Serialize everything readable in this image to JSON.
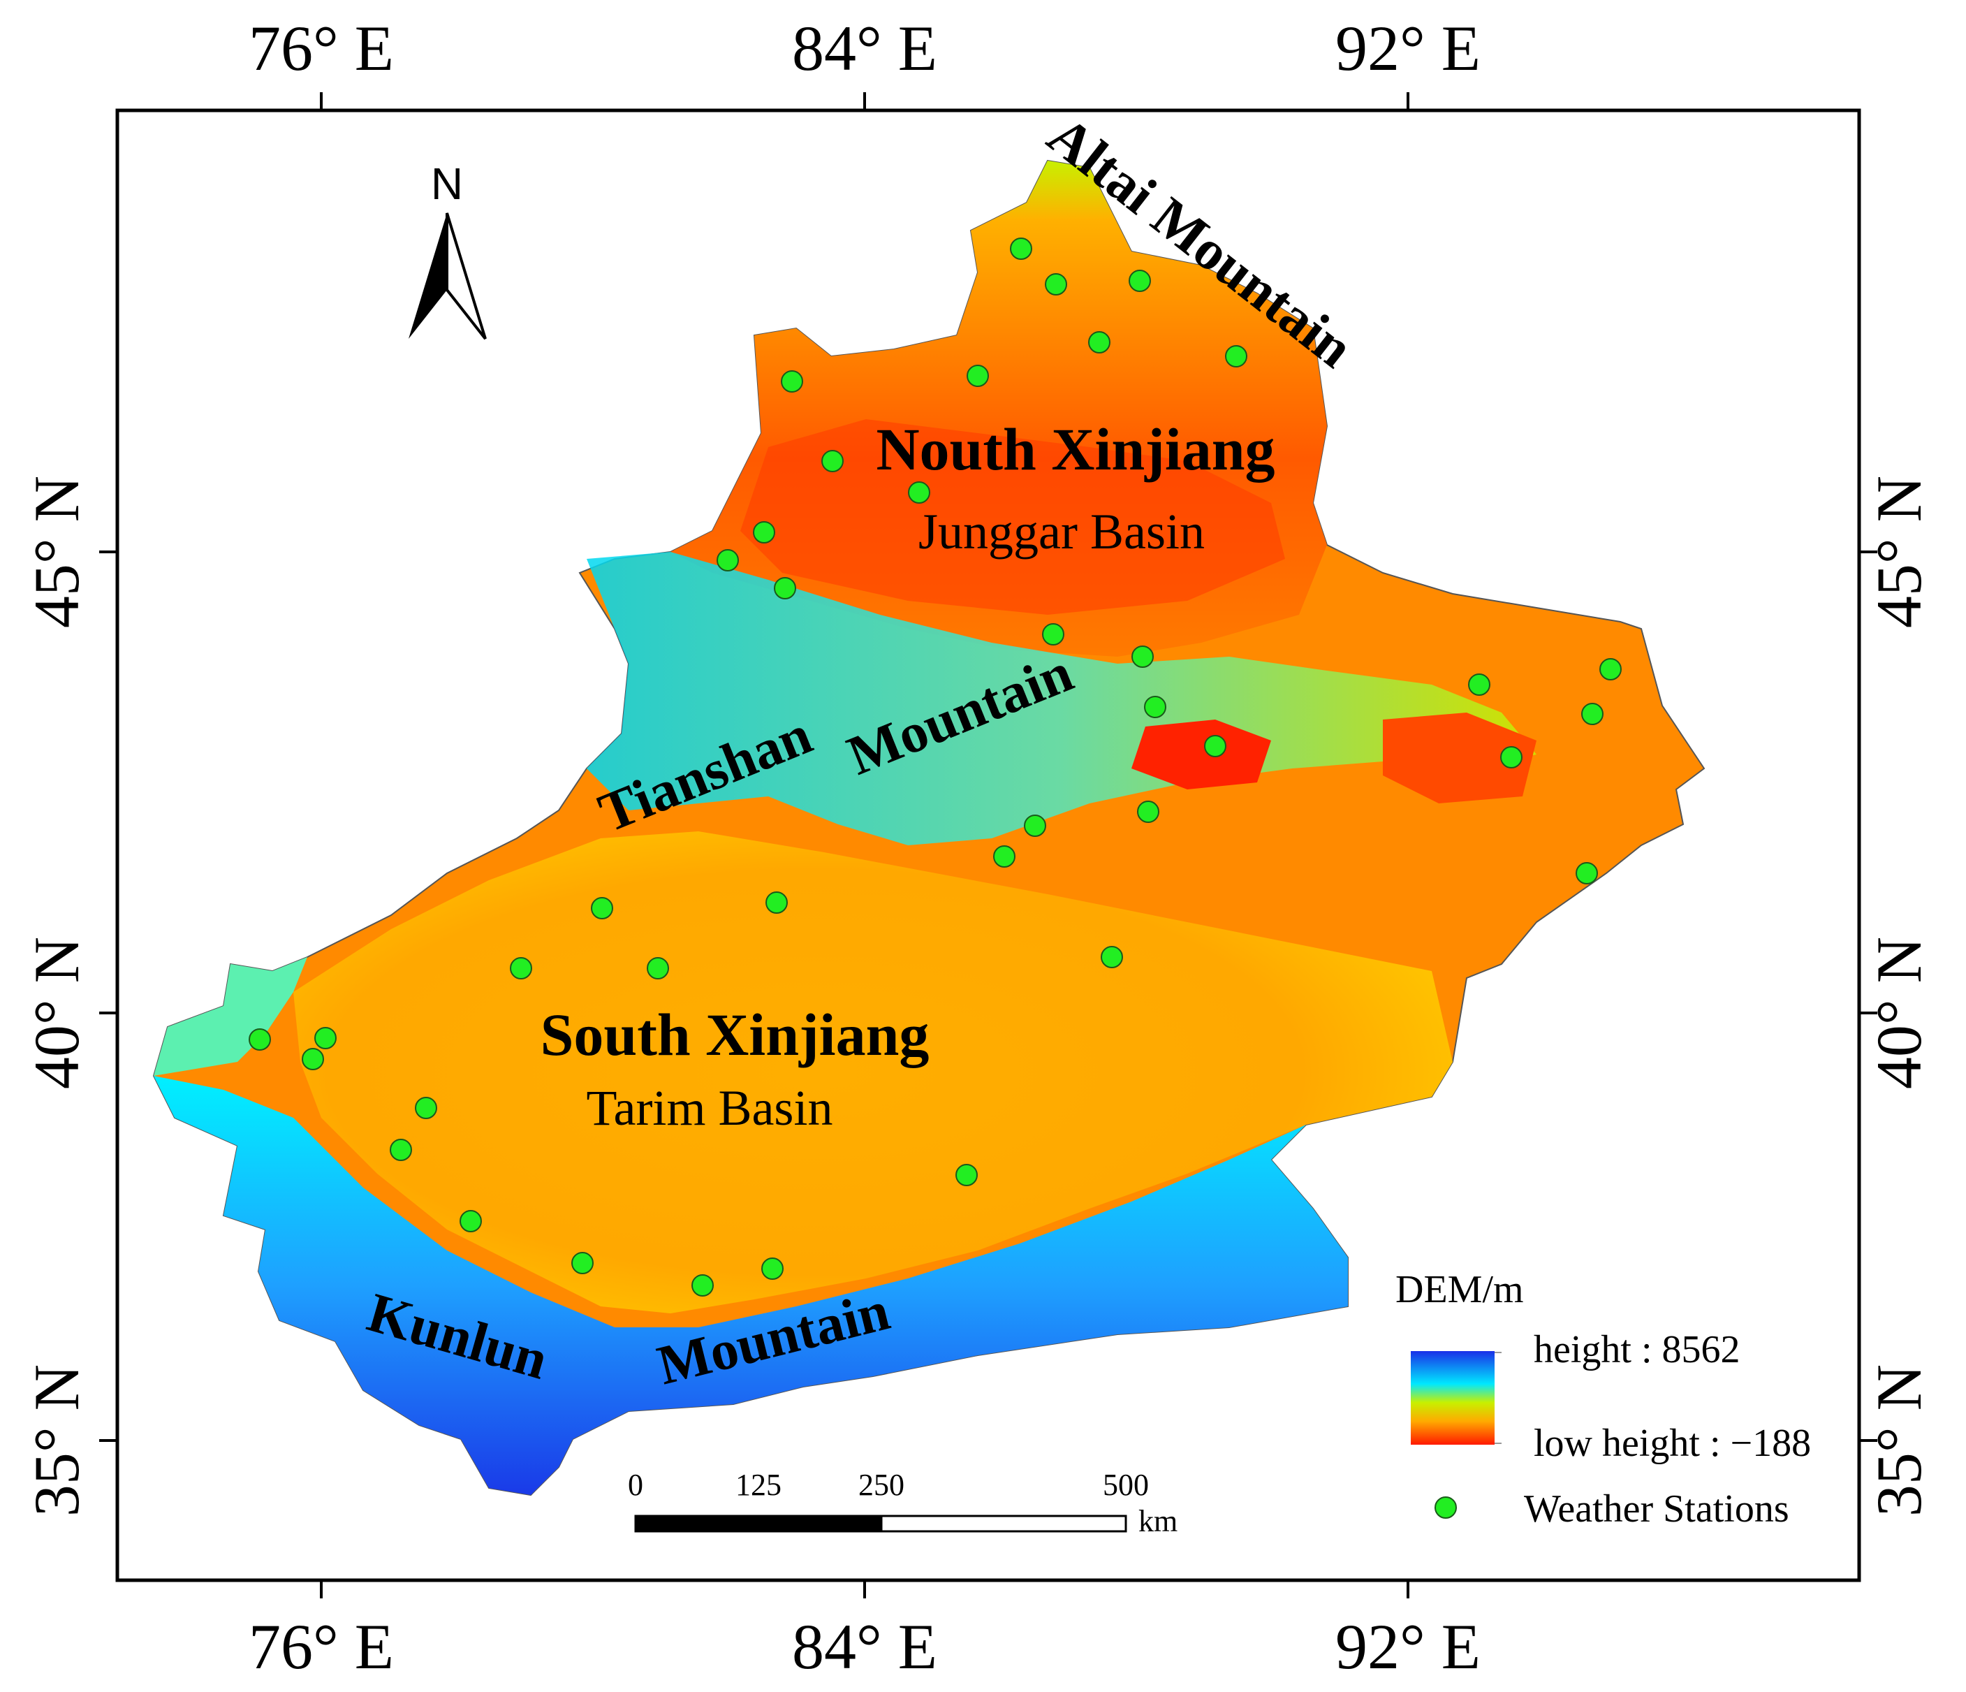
{
  "axes": {
    "longitude_ticks": [
      "76° E",
      "84° E",
      "92° E"
    ],
    "latitude_ticks": [
      "45° N",
      "40° N",
      "35° N"
    ]
  },
  "regions": {
    "north_title": "Nouth Xinjiang",
    "north_basin": "Junggar Basin",
    "south_title": "South Xinjiang",
    "south_basin": "Tarim Basin"
  },
  "mountains": {
    "altai": "Altai Mountain",
    "tianshan_1": "Tianshan",
    "tianshan_2": "Mountain",
    "kunlun_1": "Kunlun",
    "kunlun_2": "Mountain"
  },
  "north_arrow": {
    "letter": "N"
  },
  "scale_bar": {
    "labels": [
      "0",
      "125",
      "250",
      "500"
    ],
    "unit": "km"
  },
  "legend": {
    "title": "DEM/m",
    "high_label": "height : 8562",
    "low_label": "low height : −188",
    "stations_label": "Weather Stations"
  },
  "colors": {
    "high": "#1a2fe8",
    "mid_high": "#00f0ff",
    "mid": "#c8f000",
    "mid_low": "#ffaa00",
    "low": "#ff2200",
    "station": "#22ee22"
  }
}
